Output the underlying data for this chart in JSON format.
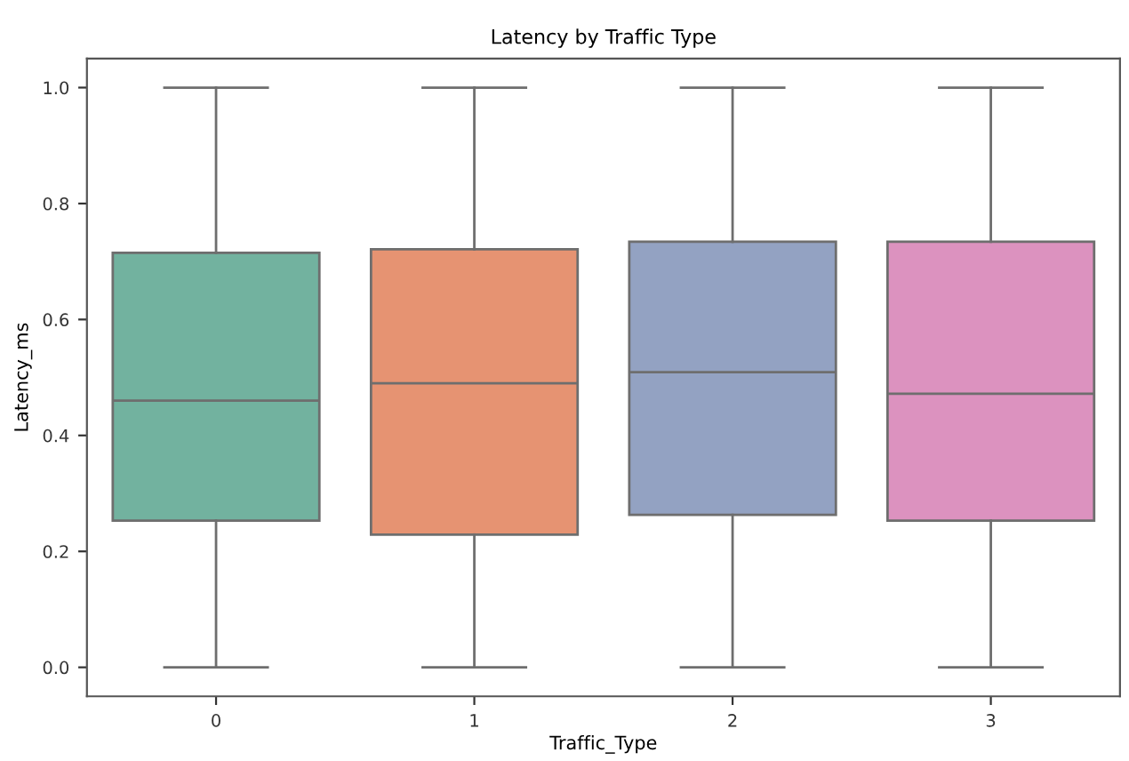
{
  "chart_data": {
    "type": "box",
    "title": "Latency by Traffic Type",
    "xlabel": "Traffic_Type",
    "ylabel": "Latency_ms",
    "categories": [
      "0",
      "1",
      "2",
      "3"
    ],
    "colors": [
      "#72b29f",
      "#e69372",
      "#93a2c2",
      "#dc92bf"
    ],
    "boxes": [
      {
        "low": 0.0,
        "q1": 0.253,
        "median": 0.46,
        "q3": 0.715,
        "high": 1.0
      },
      {
        "low": 0.0,
        "q1": 0.229,
        "median": 0.49,
        "q3": 0.721,
        "high": 1.0
      },
      {
        "low": 0.0,
        "q1": 0.263,
        "median": 0.509,
        "q3": 0.734,
        "high": 1.0
      },
      {
        "low": 0.0,
        "q1": 0.253,
        "median": 0.472,
        "q3": 0.734,
        "high": 1.0
      }
    ],
    "ylim": [
      -0.05,
      1.05
    ],
    "yticks": [
      {
        "value": 0,
        "label": "0.0"
      },
      0.2,
      0.4,
      0.6,
      0.8,
      {
        "value": 1,
        "label": "1.0"
      }
    ],
    "grid": false
  }
}
